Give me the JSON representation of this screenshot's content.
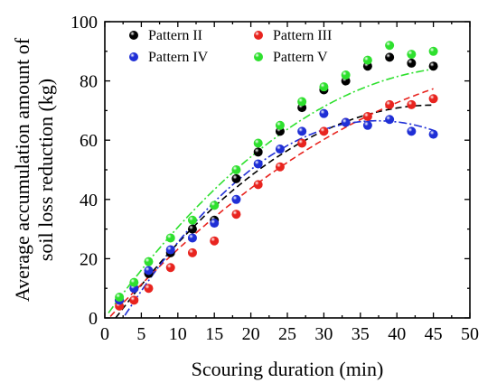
{
  "chart_data": {
    "type": "scatter",
    "xlabel": "Scouring duration (min)",
    "ylabel_lines": [
      "Average accumulation amount of",
      "soil loss reduction (kg)"
    ],
    "xlim": [
      0,
      50
    ],
    "ylim": [
      0,
      100
    ],
    "x_ticks": [
      0,
      5,
      10,
      15,
      20,
      25,
      30,
      35,
      40,
      45,
      50
    ],
    "y_ticks": [
      0,
      20,
      40,
      60,
      80,
      100
    ],
    "grid": false,
    "legend_position": "top-left",
    "series": [
      {
        "name": "Pattern II",
        "color": "#000000",
        "x": [
          2,
          4,
          6,
          9,
          12,
          15,
          18,
          21,
          24,
          27,
          30,
          33,
          36,
          39,
          42,
          45
        ],
        "y": [
          6,
          10,
          15,
          22,
          30,
          33,
          47,
          56,
          63,
          71,
          77,
          80,
          85,
          88,
          86,
          85
        ],
        "fit_style": "dashed",
        "fit": {
          "a": -0.0376,
          "b": 3.4,
          "c": -5.0
        }
      },
      {
        "name": "Pattern III",
        "color": "#e8241f",
        "x": [
          2,
          4,
          6,
          9,
          12,
          15,
          18,
          21,
          24,
          27,
          30,
          33,
          36,
          39,
          42,
          45
        ],
        "y": [
          4,
          6,
          10,
          17,
          22,
          26,
          35,
          45,
          51,
          59,
          63,
          66,
          68,
          72,
          72,
          74
        ],
        "fit_style": "dashed",
        "fit": {
          "a": -0.0204,
          "b": 2.67,
          "c": -1.5
        }
      },
      {
        "name": "Pattern IV",
        "color": "#1f2fd6",
        "x": [
          2,
          4,
          6,
          9,
          12,
          15,
          18,
          21,
          24,
          27,
          30,
          33,
          36,
          39,
          42,
          45
        ],
        "y": [
          6,
          10,
          16,
          23,
          27,
          32,
          40,
          52,
          57,
          63,
          69,
          66,
          65,
          67,
          63,
          62
        ],
        "fit_style": "dashdot",
        "fit": {
          "a": -0.0549,
          "b": 4.1,
          "c": -10.0
        }
      },
      {
        "name": "Pattern V",
        "color": "#2ee02e",
        "x": [
          2,
          4,
          6,
          9,
          12,
          15,
          18,
          21,
          24,
          27,
          30,
          33,
          36,
          39,
          42,
          45
        ],
        "y": [
          7,
          12,
          19,
          27,
          33,
          38,
          50,
          59,
          65,
          73,
          78,
          82,
          87,
          92,
          89,
          90
        ],
        "fit_style": "dashdot",
        "fit": {
          "a": -0.0341,
          "b": 3.4,
          "c": 0.0
        }
      }
    ]
  }
}
